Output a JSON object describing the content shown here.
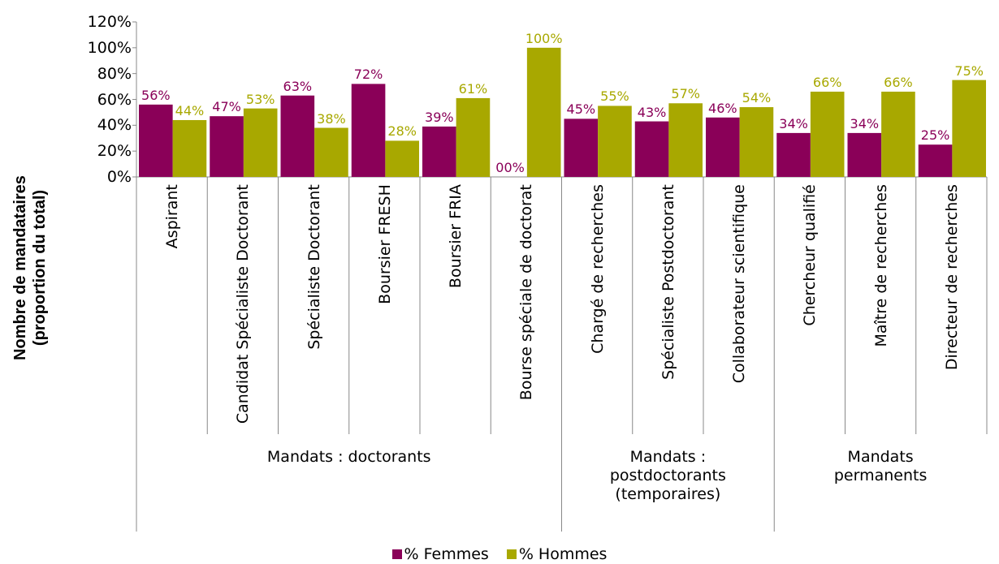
{
  "chart_data": {
    "type": "bar",
    "y_axis_label": "Nombre de mandataires (proportion du total)",
    "groups": [
      {
        "name": "Mandats : doctorants",
        "categories": [
          "Aspirant",
          "Candidat Spécialiste Doctorant",
          "Spécialiste Doctorant",
          "Boursier FRESH",
          "Boursier FRIA",
          "Bourse spéciale de doctorat"
        ]
      },
      {
        "name": "Mandats : postdoctorants (temporaires)",
        "categories": [
          "Chargé de recherches",
          "Spécialiste Postdoctorant",
          "Collaborateur scientifique"
        ]
      },
      {
        "name": "Mandats permanents",
        "categories": [
          "Chercheur qualifié",
          "Maître de recherches",
          "Directeur de recherches"
        ]
      }
    ],
    "series": [
      {
        "name": "% Femmes",
        "color": "#8a0058",
        "values": [
          56,
          47,
          63,
          72,
          39,
          0,
          45,
          43,
          46,
          34,
          34,
          25
        ],
        "value_labels": [
          "56%",
          "47%",
          "63%",
          "72%",
          "39%",
          "00%",
          "45%",
          "43%",
          "46%",
          "34%",
          "34%",
          "25%"
        ]
      },
      {
        "name": "% Hommes",
        "color": "#a8a800",
        "values": [
          44,
          53,
          38,
          28,
          61,
          100,
          55,
          57,
          54,
          66,
          66,
          75
        ],
        "value_labels": [
          "44%",
          "53%",
          "38%",
          "28%",
          "61%",
          "100%",
          "55%",
          "57%",
          "54%",
          "66%",
          "66%",
          "75%"
        ]
      }
    ],
    "ylim": [
      0,
      120
    ],
    "yticks": [
      {
        "value": 0,
        "label": "0%"
      },
      {
        "value": 20,
        "label": "20%"
      },
      {
        "value": 40,
        "label": "40%"
      },
      {
        "value": 60,
        "label": "60%"
      },
      {
        "value": 80,
        "label": "80%"
      },
      {
        "value": 100,
        "label": "100%"
      },
      {
        "value": 120,
        "label": "120%"
      }
    ],
    "grid": false,
    "legend": "bottom"
  }
}
